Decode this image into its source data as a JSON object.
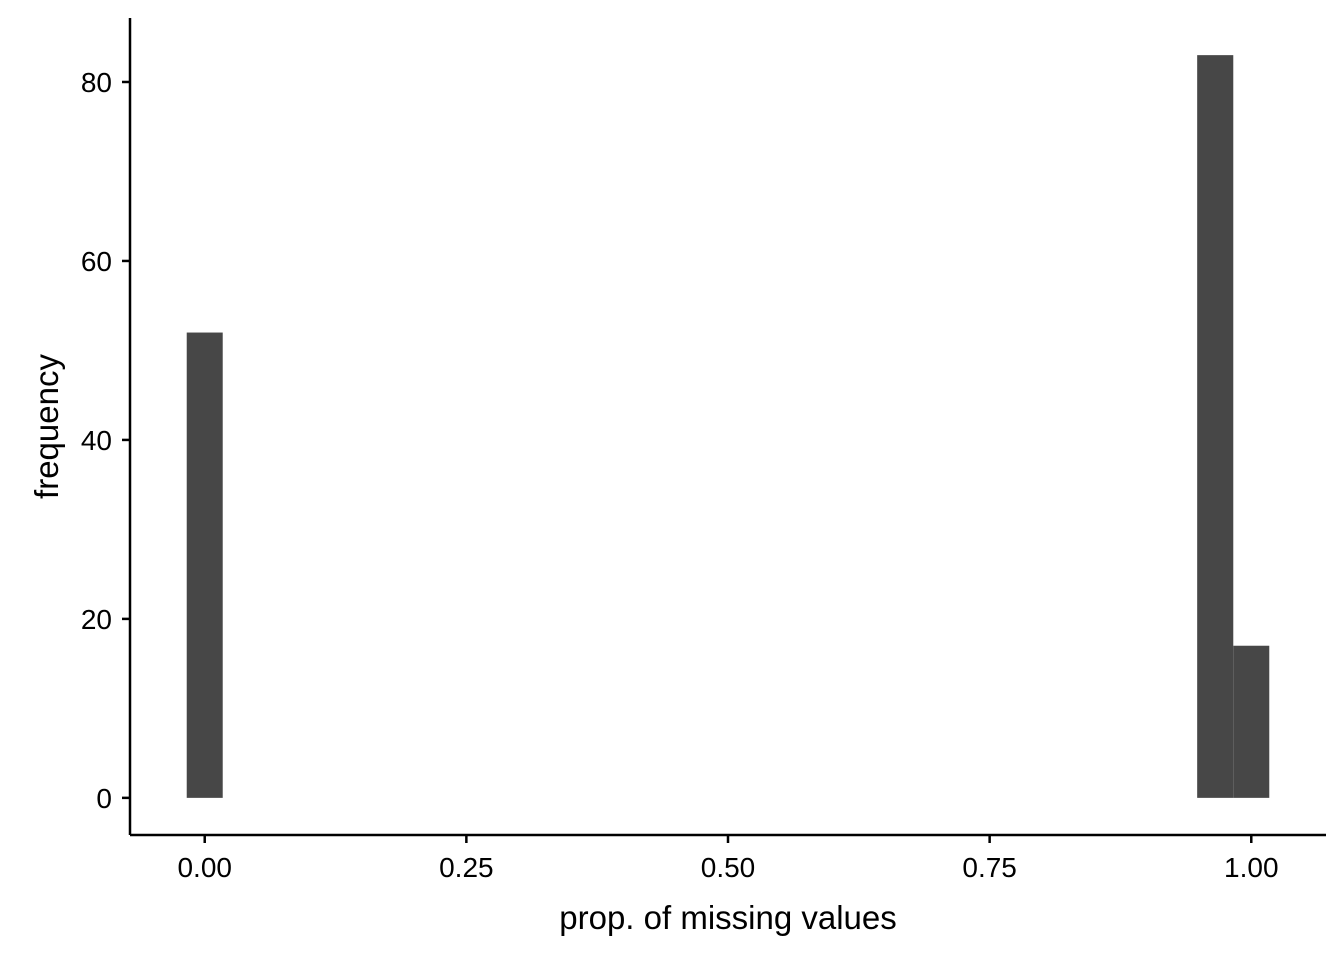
{
  "chart_data": {
    "type": "bar",
    "subtype": "histogram",
    "title": "",
    "xlabel": "prop. of missing values",
    "ylabel": "frequency",
    "xlim": [
      -0.0714,
      1.0714
    ],
    "ylim": [
      -4.15,
      87.15
    ],
    "x_ticks": [
      0,
      0.25,
      0.5,
      0.75,
      1.0
    ],
    "x_tick_labels": [
      "0.00",
      "0.25",
      "0.50",
      "0.75",
      "1.00"
    ],
    "y_ticks": [
      0,
      20,
      40,
      60,
      80
    ],
    "y_tick_labels": [
      "0",
      "20",
      "40",
      "60",
      "80"
    ],
    "bin_width": 0.0345,
    "bins": [
      {
        "x_min": -0.0172,
        "x_max": 0.0172,
        "count": 52
      },
      {
        "x_min": 0.9483,
        "x_max": 0.9828,
        "count": 83
      },
      {
        "x_min": 0.9828,
        "x_max": 1.0172,
        "count": 17
      }
    ],
    "bar_color": "#474747",
    "grid": false,
    "legend": "none"
  }
}
